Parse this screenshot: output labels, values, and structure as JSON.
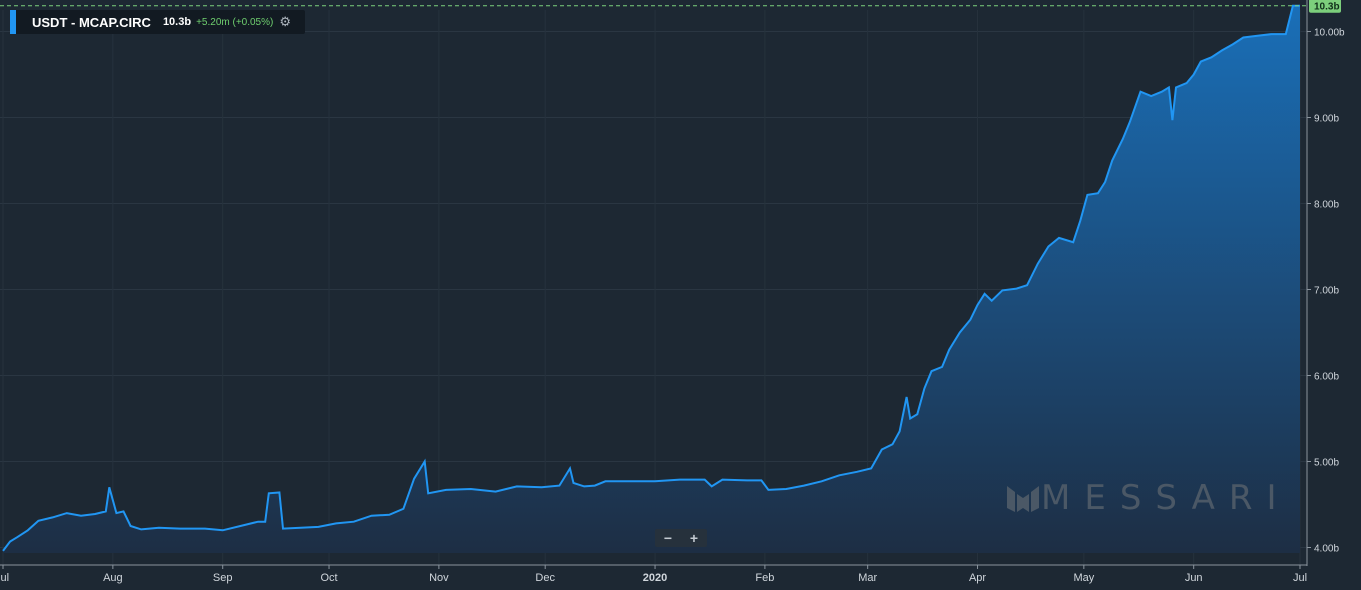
{
  "legend": {
    "series_name": "USDT - MCAP.CIRC",
    "last_value": "10.3b",
    "change": "+5.20m (+0.05%)",
    "settings_icon": "gear-icon"
  },
  "last_value_tag": "10.3b",
  "watermark": {
    "text": "MESSARI",
    "logo_icon": "messari-logo-icon"
  },
  "zoom": {
    "minus": "−",
    "plus": "+"
  },
  "colors": {
    "line": "#2196f3",
    "background": "#1d2833",
    "tag": "#7ccf7c"
  },
  "chart_data": {
    "type": "area",
    "ylim": [
      3.95,
      10.3
    ],
    "yticks": [
      {
        "v": 4,
        "label": "4.00b"
      },
      {
        "v": 5,
        "label": "5.00b"
      },
      {
        "v": 6,
        "label": "6.00b"
      },
      {
        "v": 7,
        "label": "7.00b"
      },
      {
        "v": 8,
        "label": "8.00b"
      },
      {
        "v": 9,
        "label": "9.00b"
      },
      {
        "v": 10,
        "label": "10.00b"
      }
    ],
    "xticks": [
      {
        "d": "2019-07-01",
        "label": "Jul"
      },
      {
        "d": "2019-08-01",
        "label": "Aug"
      },
      {
        "d": "2019-09-01",
        "label": "Sep"
      },
      {
        "d": "2019-10-01",
        "label": "Oct"
      },
      {
        "d": "2019-11-01",
        "label": "Nov"
      },
      {
        "d": "2019-12-01",
        "label": "Dec"
      },
      {
        "d": "2020-01-01",
        "label": "2020"
      },
      {
        "d": "2020-02-01",
        "label": "Feb"
      },
      {
        "d": "2020-03-01",
        "label": "Mar"
      },
      {
        "d": "2020-04-01",
        "label": "Apr"
      },
      {
        "d": "2020-05-01",
        "label": "May"
      },
      {
        "d": "2020-06-01",
        "label": "Jun"
      },
      {
        "d": "2020-07-01",
        "label": "Jul"
      }
    ],
    "series": [
      {
        "name": "USDT - MCAP.CIRC",
        "points": [
          [
            "2019-07-01",
            3.96
          ],
          [
            "2019-07-03",
            4.07
          ],
          [
            "2019-07-05",
            4.12
          ],
          [
            "2019-07-08",
            4.2
          ],
          [
            "2019-07-11",
            4.31
          ],
          [
            "2019-07-15",
            4.35
          ],
          [
            "2019-07-19",
            4.4
          ],
          [
            "2019-07-23",
            4.37
          ],
          [
            "2019-07-27",
            4.39
          ],
          [
            "2019-07-30",
            4.42
          ],
          [
            "2019-07-31",
            4.7
          ],
          [
            "2019-08-02",
            4.4
          ],
          [
            "2019-08-04",
            4.42
          ],
          [
            "2019-08-06",
            4.25
          ],
          [
            "2019-08-09",
            4.21
          ],
          [
            "2019-08-14",
            4.23
          ],
          [
            "2019-08-20",
            4.22
          ],
          [
            "2019-08-27",
            4.22
          ],
          [
            "2019-09-01",
            4.2
          ],
          [
            "2019-09-06",
            4.25
          ],
          [
            "2019-09-11",
            4.3
          ],
          [
            "2019-09-13",
            4.3
          ],
          [
            "2019-09-14",
            4.63
          ],
          [
            "2019-09-17",
            4.64
          ],
          [
            "2019-09-18",
            4.22
          ],
          [
            "2019-09-23",
            4.23
          ],
          [
            "2019-09-28",
            4.24
          ],
          [
            "2019-10-03",
            4.28
          ],
          [
            "2019-10-08",
            4.3
          ],
          [
            "2019-10-13",
            4.37
          ],
          [
            "2019-10-18",
            4.38
          ],
          [
            "2019-10-22",
            4.45
          ],
          [
            "2019-10-25",
            4.8
          ],
          [
            "2019-10-28",
            5.0
          ],
          [
            "2019-10-29",
            4.63
          ],
          [
            "2019-11-03",
            4.67
          ],
          [
            "2019-11-10",
            4.68
          ],
          [
            "2019-11-17",
            4.65
          ],
          [
            "2019-11-23",
            4.71
          ],
          [
            "2019-11-30",
            4.7
          ],
          [
            "2019-12-05",
            4.72
          ],
          [
            "2019-12-08",
            4.92
          ],
          [
            "2019-12-09",
            4.75
          ],
          [
            "2019-12-12",
            4.71
          ],
          [
            "2019-12-15",
            4.72
          ],
          [
            "2019-12-18",
            4.77
          ],
          [
            "2019-12-25",
            4.77
          ],
          [
            "2020-01-01",
            4.77
          ],
          [
            "2020-01-08",
            4.79
          ],
          [
            "2020-01-15",
            4.79
          ],
          [
            "2020-01-17",
            4.71
          ],
          [
            "2020-01-20",
            4.79
          ],
          [
            "2020-01-27",
            4.78
          ],
          [
            "2020-01-31",
            4.78
          ],
          [
            "2020-02-02",
            4.67
          ],
          [
            "2020-02-07",
            4.68
          ],
          [
            "2020-02-12",
            4.72
          ],
          [
            "2020-02-17",
            4.77
          ],
          [
            "2020-02-22",
            4.84
          ],
          [
            "2020-02-27",
            4.88
          ],
          [
            "2020-03-02",
            4.92
          ],
          [
            "2020-03-05",
            5.14
          ],
          [
            "2020-03-08",
            5.2
          ],
          [
            "2020-03-10",
            5.35
          ],
          [
            "2020-03-12",
            5.75
          ],
          [
            "2020-03-13",
            5.5
          ],
          [
            "2020-03-15",
            5.55
          ],
          [
            "2020-03-17",
            5.85
          ],
          [
            "2020-03-19",
            6.05
          ],
          [
            "2020-03-22",
            6.1
          ],
          [
            "2020-03-24",
            6.3
          ],
          [
            "2020-03-27",
            6.5
          ],
          [
            "2020-03-30",
            6.65
          ],
          [
            "2020-04-01",
            6.82
          ],
          [
            "2020-04-03",
            6.95
          ],
          [
            "2020-04-05",
            6.87
          ],
          [
            "2020-04-08",
            6.99
          ],
          [
            "2020-04-12",
            7.01
          ],
          [
            "2020-04-15",
            7.05
          ],
          [
            "2020-04-18",
            7.3
          ],
          [
            "2020-04-21",
            7.5
          ],
          [
            "2020-04-24",
            7.6
          ],
          [
            "2020-04-28",
            7.55
          ],
          [
            "2020-04-30",
            7.8
          ],
          [
            "2020-05-02",
            8.1
          ],
          [
            "2020-05-05",
            8.12
          ],
          [
            "2020-05-07",
            8.25
          ],
          [
            "2020-05-09",
            8.5
          ],
          [
            "2020-05-12",
            8.75
          ],
          [
            "2020-05-14",
            8.95
          ],
          [
            "2020-05-17",
            9.3
          ],
          [
            "2020-05-20",
            9.25
          ],
          [
            "2020-05-23",
            9.3
          ],
          [
            "2020-05-25",
            9.35
          ],
          [
            "2020-05-26",
            8.97
          ],
          [
            "2020-05-27",
            9.35
          ],
          [
            "2020-05-30",
            9.4
          ],
          [
            "2020-06-01",
            9.5
          ],
          [
            "2020-06-03",
            9.65
          ],
          [
            "2020-06-06",
            9.7
          ],
          [
            "2020-06-09",
            9.78
          ],
          [
            "2020-06-12",
            9.85
          ],
          [
            "2020-06-15",
            9.93
          ],
          [
            "2020-06-19",
            9.95
          ],
          [
            "2020-06-23",
            9.97
          ],
          [
            "2020-06-27",
            9.97
          ],
          [
            "2020-06-29",
            10.3
          ],
          [
            "2020-07-01",
            10.3
          ]
        ]
      }
    ]
  }
}
